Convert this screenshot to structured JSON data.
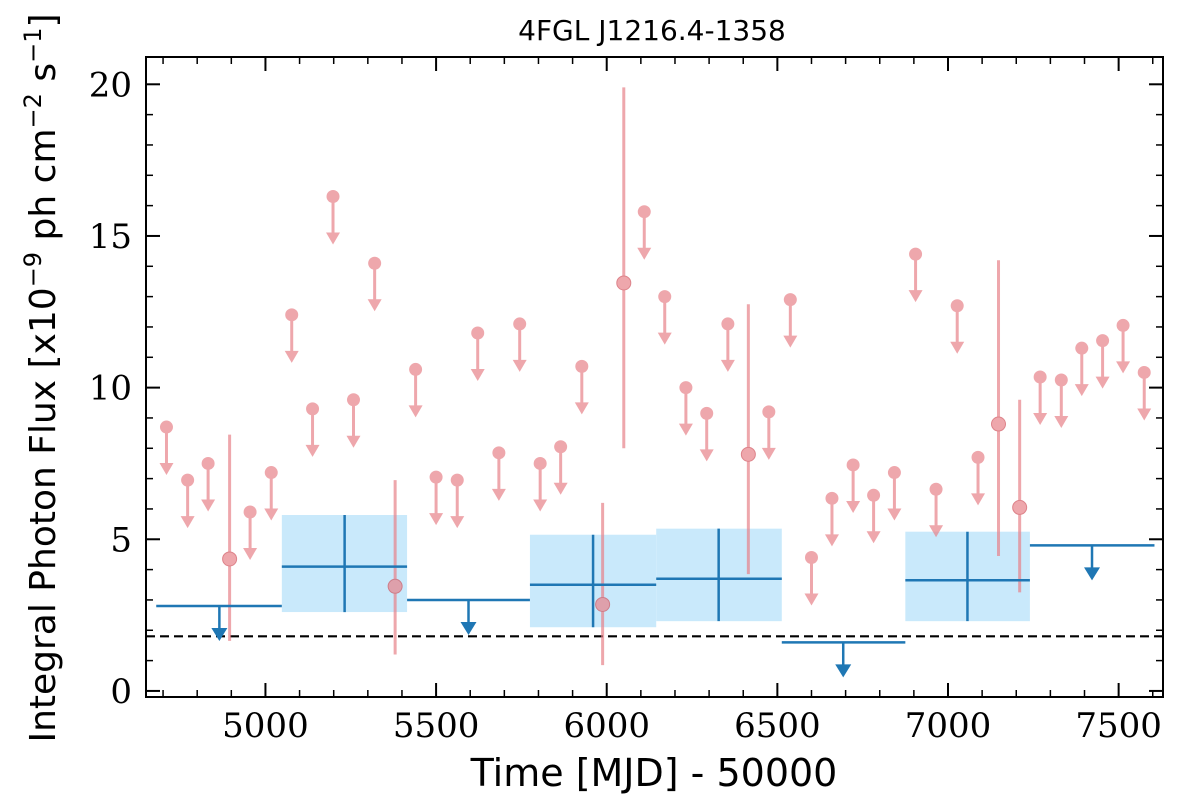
{
  "chart_data": {
    "type": "scatter",
    "title": "4FGL J1216.4-1358",
    "xlabel": "Time [MJD] - 50000",
    "ylabel": "Integral Photon Flux [x10^-9 ph cm^-2 s^-1]",
    "ylabel_parts": {
      "prefix": "Integral Photon Flux [x10",
      "exp1": "−9",
      "mid": " ph cm",
      "exp2": "−2",
      "mid2": " s",
      "exp3": "−1",
      "suffix": "]"
    },
    "xlim": [
      4650,
      7630
    ],
    "ylim": [
      -0.2,
      20.9
    ],
    "xticks": [
      5000,
      5500,
      6000,
      6500,
      7000,
      7500
    ],
    "yticks": [
      0,
      5,
      10,
      15,
      20
    ],
    "grid": false,
    "legend": "none",
    "colors": {
      "monthly": "#e8828a",
      "yearly": "#1f77b4",
      "yearly_band": "#c9e9fb",
      "reference": "#000000"
    },
    "reference_line": {
      "y": 1.8,
      "style": "dashed"
    },
    "series": [
      {
        "role": "monthly upper limits",
        "marker": "circle-with-down-arrow",
        "points": [
          {
            "x": 4710,
            "y": 8.7
          },
          {
            "x": 4772,
            "y": 6.95
          },
          {
            "x": 4832,
            "y": 7.5
          },
          {
            "x": 4955,
            "y": 5.9
          },
          {
            "x": 5017,
            "y": 7.2
          },
          {
            "x": 5077,
            "y": 12.4
          },
          {
            "x": 5138,
            "y": 9.3
          },
          {
            "x": 5198,
            "y": 16.3
          },
          {
            "x": 5258,
            "y": 9.6
          },
          {
            "x": 5320,
            "y": 14.1
          },
          {
            "x": 5440,
            "y": 10.6
          },
          {
            "x": 5500,
            "y": 7.05
          },
          {
            "x": 5562,
            "y": 6.95
          },
          {
            "x": 5622,
            "y": 11.8
          },
          {
            "x": 5684,
            "y": 7.85
          },
          {
            "x": 5745,
            "y": 12.1
          },
          {
            "x": 5805,
            "y": 7.5
          },
          {
            "x": 5865,
            "y": 8.05
          },
          {
            "x": 5927,
            "y": 10.7
          },
          {
            "x": 6110,
            "y": 15.8
          },
          {
            "x": 6170,
            "y": 13.0
          },
          {
            "x": 6232,
            "y": 10.0
          },
          {
            "x": 6293,
            "y": 9.15
          },
          {
            "x": 6355,
            "y": 12.1
          },
          {
            "x": 6475,
            "y": 9.2
          },
          {
            "x": 6538,
            "y": 12.9
          },
          {
            "x": 6600,
            "y": 4.4
          },
          {
            "x": 6660,
            "y": 6.35
          },
          {
            "x": 6722,
            "y": 7.45
          },
          {
            "x": 6782,
            "y": 6.45
          },
          {
            "x": 6843,
            "y": 7.2
          },
          {
            "x": 6905,
            "y": 14.4
          },
          {
            "x": 6965,
            "y": 6.65
          },
          {
            "x": 7027,
            "y": 12.7
          },
          {
            "x": 7088,
            "y": 7.7
          },
          {
            "x": 7270,
            "y": 10.35
          },
          {
            "x": 7332,
            "y": 10.25
          },
          {
            "x": 7392,
            "y": 11.3
          },
          {
            "x": 7453,
            "y": 11.55
          },
          {
            "x": 7513,
            "y": 12.05
          },
          {
            "x": 7575,
            "y": 10.5
          }
        ]
      },
      {
        "role": "monthly detections",
        "marker": "circle-with-error-bar",
        "points": [
          {
            "x": 4895,
            "y": 4.35,
            "ylo": 1.65,
            "yhi": 8.45
          },
          {
            "x": 5380,
            "y": 3.45,
            "ylo": 1.2,
            "yhi": 6.95
          },
          {
            "x": 5988,
            "y": 2.85,
            "ylo": 0.85,
            "yhi": 6.2
          },
          {
            "x": 6050,
            "y": 13.45,
            "ylo": 8.0,
            "yhi": 19.9
          },
          {
            "x": 6415,
            "y": 7.8,
            "ylo": 3.85,
            "yhi": 12.75
          },
          {
            "x": 7148,
            "y": 8.8,
            "ylo": 4.45,
            "yhi": 14.2
          },
          {
            "x": 7210,
            "y": 6.05,
            "ylo": 3.25,
            "yhi": 9.6
          }
        ]
      },
      {
        "role": "yearly detections",
        "marker": "cross-with-band",
        "points": [
          {
            "x": 5232,
            "x0": 5048,
            "x1": 5415,
            "y": 4.1,
            "ylo": 2.6,
            "yhi": 5.8
          },
          {
            "x": 5960,
            "x0": 5775,
            "x1": 6145,
            "y": 3.5,
            "ylo": 2.1,
            "yhi": 5.15
          },
          {
            "x": 6328,
            "x0": 6145,
            "x1": 6513,
            "y": 3.7,
            "ylo": 2.3,
            "yhi": 5.35
          },
          {
            "x": 7057,
            "x0": 6875,
            "x1": 7240,
            "y": 3.65,
            "ylo": 2.3,
            "yhi": 5.25
          }
        ]
      },
      {
        "role": "yearly upper limits",
        "marker": "horizontal-bar-with-down-arrow",
        "points": [
          {
            "x0": 4680,
            "x1": 5048,
            "y": 2.8,
            "arrow_x": 4865
          },
          {
            "x0": 5415,
            "x1": 5775,
            "y": 3.0,
            "arrow_x": 5595
          },
          {
            "x0": 6513,
            "x1": 6875,
            "y": 1.6,
            "arrow_x": 6693
          },
          {
            "x0": 7240,
            "x1": 7605,
            "y": 4.8,
            "arrow_x": 7422
          }
        ]
      }
    ]
  }
}
